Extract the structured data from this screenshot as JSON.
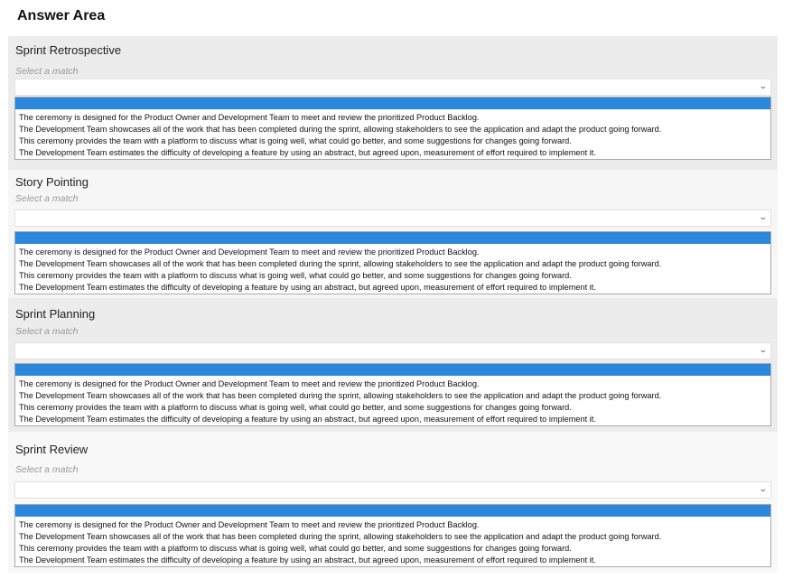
{
  "title": "Answer Area",
  "hint": "Select a match",
  "options": [
    "The ceremony is designed for the Product Owner and Development Team to meet and review the prioritized Product Backlog.",
    "The Development Team showcases all of the work that has been completed during the sprint, allowing stakeholders to see the application and adapt the product going forward.",
    "This ceremony provides the team with a platform to discuss what is going well, what could go better, and some suggestions for changes going forward.",
    "The Development Team estimates the difficulty of developing a feature by using an abstract, but agreed upon, measurement of effort required to implement it."
  ],
  "sections": [
    {
      "label": "Sprint Retrospective"
    },
    {
      "label": "Story Pointing"
    },
    {
      "label": "Sprint Planning"
    },
    {
      "label": "Sprint Review"
    }
  ],
  "colors": {
    "highlight": "#2a87dc"
  }
}
